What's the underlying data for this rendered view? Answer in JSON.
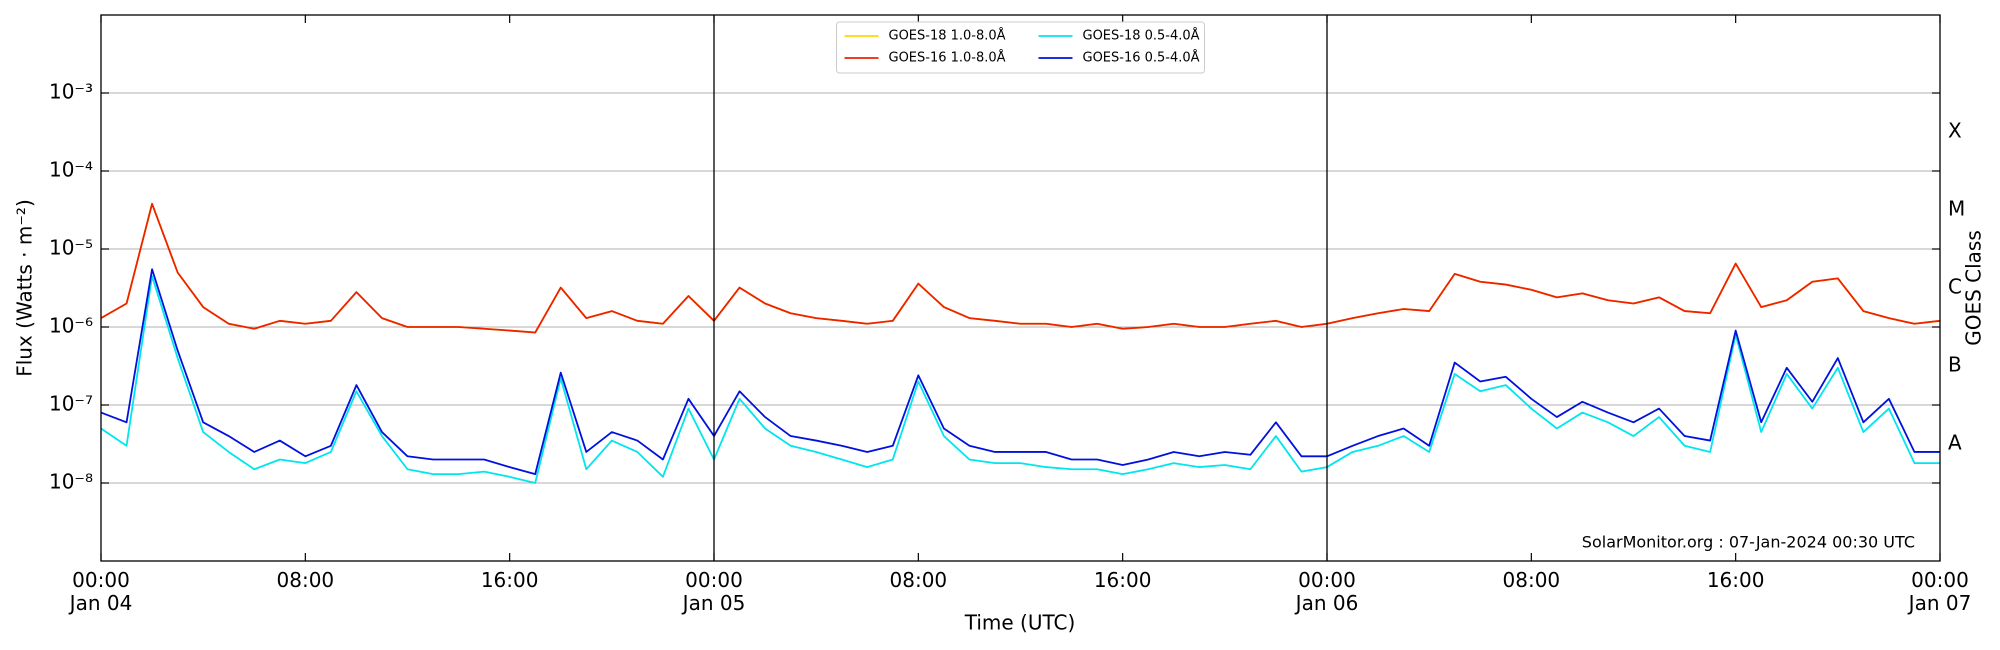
{
  "chart_data": {
    "type": "line",
    "ylabel": "Flux (Watts · m⁻²)",
    "xlabel": "Time (UTC)",
    "y2label": "GOES Class",
    "annotation": "SolarMonitor.org : 07-Jan-2024 00:30 UTC",
    "log_y": true,
    "grid": true,
    "legend_loc": "upper center",
    "xlim": [
      0,
      72
    ],
    "xticks": [
      {
        "value": 0,
        "label": "00:00\nJan 04"
      },
      {
        "value": 8,
        "label": "08:00"
      },
      {
        "value": 16,
        "label": "16:00"
      },
      {
        "value": 24,
        "label": "00:00\nJan 05"
      },
      {
        "value": 32,
        "label": "08:00"
      },
      {
        "value": 40,
        "label": "16:00"
      },
      {
        "value": 48,
        "label": "00:00\nJan 06"
      },
      {
        "value": 56,
        "label": "08:00"
      },
      {
        "value": 64,
        "label": "16:00"
      },
      {
        "value": 72,
        "label": "00:00\nJan 07"
      }
    ],
    "vlines": [
      24,
      48
    ],
    "ylim": [
      1e-09,
      0.01
    ],
    "yticks": [
      {
        "value": 1e-08,
        "label": "10⁻⁸"
      },
      {
        "value": 1e-07,
        "label": "10⁻⁷"
      },
      {
        "value": 1e-06,
        "label": "10⁻⁶"
      },
      {
        "value": 1e-05,
        "label": "10⁻⁵"
      },
      {
        "value": 0.0001,
        "label": "10⁻⁴"
      },
      {
        "value": 0.001,
        "label": "10⁻³"
      }
    ],
    "y2lim": [
      1e-09,
      0.01
    ],
    "y2ticks": [
      {
        "value": 3.16e-08,
        "label": "A"
      },
      {
        "value": 3.16e-07,
        "label": "B"
      },
      {
        "value": 3.16e-06,
        "label": "C"
      },
      {
        "value": 3.16e-05,
        "label": "M"
      },
      {
        "value": 0.000316,
        "label": "X"
      }
    ],
    "x": [
      0,
      1,
      2,
      3,
      4,
      5,
      6,
      7,
      8,
      9,
      10,
      11,
      12,
      13,
      14,
      15,
      16,
      17,
      18,
      19,
      20,
      21,
      22,
      23,
      24,
      25,
      26,
      27,
      28,
      29,
      30,
      31,
      32,
      33,
      34,
      35,
      36,
      37,
      38,
      39,
      40,
      41,
      42,
      43,
      44,
      45,
      46,
      47,
      48,
      49,
      50,
      51,
      52,
      53,
      54,
      55,
      56,
      57,
      58,
      59,
      60,
      61,
      62,
      63,
      64,
      65,
      66,
      67,
      68,
      69,
      70,
      71,
      72
    ],
    "series": [
      {
        "name": "GOES-18 1.0-8.0Å",
        "color": "#ffd700",
        "values": [
          1.3e-06,
          2e-06,
          3.8e-05,
          5e-06,
          1.8e-06,
          1.1e-06,
          9.5e-07,
          1.2e-06,
          1.1e-06,
          1.2e-06,
          2.8e-06,
          1.3e-06,
          1e-06,
          1e-06,
          1e-06,
          9.5e-07,
          9e-07,
          8.5e-07,
          3.2e-06,
          1.3e-06,
          1.6e-06,
          1.2e-06,
          1.1e-06,
          2.5e-06,
          1.2e-06,
          3.2e-06,
          2e-06,
          1.5e-06,
          1.3e-06,
          1.2e-06,
          1.1e-06,
          1.2e-06,
          3.6e-06,
          1.8e-06,
          1.3e-06,
          1.2e-06,
          1.1e-06,
          1.1e-06,
          1e-06,
          1.1e-06,
          9.5e-07,
          1e-06,
          1.1e-06,
          1e-06,
          1e-06,
          1.1e-06,
          1.2e-06,
          1e-06,
          1.1e-06,
          1.3e-06,
          1.5e-06,
          1.7e-06,
          1.6e-06,
          4.8e-06,
          3.8e-06,
          3.5e-06,
          3e-06,
          2.4e-06,
          2.7e-06,
          2.2e-06,
          2e-06,
          2.4e-06,
          1.6e-06,
          1.5e-06,
          6.5e-06,
          1.8e-06,
          2.2e-06,
          3.8e-06,
          4.2e-06,
          1.6e-06,
          1.3e-06,
          1.1e-06,
          1.2e-06
        ]
      },
      {
        "name": "GOES-16 1.0-8.0Å",
        "color": "#ee2200",
        "values": [
          1.3e-06,
          2e-06,
          3.8e-05,
          5e-06,
          1.8e-06,
          1.1e-06,
          9.5e-07,
          1.2e-06,
          1.1e-06,
          1.2e-06,
          2.8e-06,
          1.3e-06,
          1e-06,
          1e-06,
          1e-06,
          9.5e-07,
          9e-07,
          8.5e-07,
          3.2e-06,
          1.3e-06,
          1.6e-06,
          1.2e-06,
          1.1e-06,
          2.5e-06,
          1.2e-06,
          3.2e-06,
          2e-06,
          1.5e-06,
          1.3e-06,
          1.2e-06,
          1.1e-06,
          1.2e-06,
          3.6e-06,
          1.8e-06,
          1.3e-06,
          1.2e-06,
          1.1e-06,
          1.1e-06,
          1e-06,
          1.1e-06,
          9.5e-07,
          1e-06,
          1.1e-06,
          1e-06,
          1e-06,
          1.1e-06,
          1.2e-06,
          1e-06,
          1.1e-06,
          1.3e-06,
          1.5e-06,
          1.7e-06,
          1.6e-06,
          4.8e-06,
          3.8e-06,
          3.5e-06,
          3e-06,
          2.4e-06,
          2.7e-06,
          2.2e-06,
          2e-06,
          2.4e-06,
          1.6e-06,
          1.5e-06,
          6.5e-06,
          1.8e-06,
          2.2e-06,
          3.8e-06,
          4.2e-06,
          1.6e-06,
          1.3e-06,
          1.1e-06,
          1.2e-06
        ]
      },
      {
        "name": "GOES-18 0.5-4.0Å",
        "color": "#00e5ee",
        "values": [
          5e-08,
          3e-08,
          4.5e-06,
          4e-07,
          4.5e-08,
          2.5e-08,
          1.5e-08,
          2e-08,
          1.8e-08,
          2.5e-08,
          1.5e-07,
          4e-08,
          1.5e-08,
          1.3e-08,
          1.3e-08,
          1.4e-08,
          1.2e-08,
          1e-08,
          2.2e-07,
          1.5e-08,
          3.5e-08,
          2.5e-08,
          1.2e-08,
          9e-08,
          2e-08,
          1.2e-07,
          5e-08,
          3e-08,
          2.5e-08,
          2e-08,
          1.6e-08,
          2e-08,
          2e-07,
          4e-08,
          2e-08,
          1.8e-08,
          1.8e-08,
          1.6e-08,
          1.5e-08,
          1.5e-08,
          1.3e-08,
          1.5e-08,
          1.8e-08,
          1.6e-08,
          1.7e-08,
          1.5e-08,
          4e-08,
          1.4e-08,
          1.6e-08,
          2.5e-08,
          3e-08,
          4e-08,
          2.5e-08,
          2.5e-07,
          1.5e-07,
          1.8e-07,
          9e-08,
          5e-08,
          8e-08,
          6e-08,
          4e-08,
          7e-08,
          3e-08,
          2.5e-08,
          8e-07,
          4.5e-08,
          2.5e-07,
          9e-08,
          3e-07,
          4.5e-08,
          9e-08,
          1.8e-08,
          1.8e-08
        ]
      },
      {
        "name": "GOES-16 0.5-4.0Å",
        "color": "#0011dd",
        "values": [
          8e-08,
          6e-08,
          5.5e-06,
          5e-07,
          6e-08,
          4e-08,
          2.5e-08,
          3.5e-08,
          2.2e-08,
          3e-08,
          1.8e-07,
          4.5e-08,
          2.2e-08,
          2e-08,
          2e-08,
          2e-08,
          1.6e-08,
          1.3e-08,
          2.6e-07,
          2.5e-08,
          4.5e-08,
          3.5e-08,
          2e-08,
          1.2e-07,
          4e-08,
          1.5e-07,
          7e-08,
          4e-08,
          3.5e-08,
          3e-08,
          2.5e-08,
          3e-08,
          2.4e-07,
          5e-08,
          3e-08,
          2.5e-08,
          2.5e-08,
          2.5e-08,
          2e-08,
          2e-08,
          1.7e-08,
          2e-08,
          2.5e-08,
          2.2e-08,
          2.5e-08,
          2.3e-08,
          6e-08,
          2.2e-08,
          2.2e-08,
          3e-08,
          4e-08,
          5e-08,
          3e-08,
          3.5e-07,
          2e-07,
          2.3e-07,
          1.2e-07,
          7e-08,
          1.1e-07,
          8e-08,
          6e-08,
          9e-08,
          4e-08,
          3.5e-08,
          9e-07,
          6e-08,
          3e-07,
          1.1e-07,
          4e-07,
          6e-08,
          1.2e-07,
          2.5e-08,
          2.5e-08
        ]
      }
    ]
  }
}
